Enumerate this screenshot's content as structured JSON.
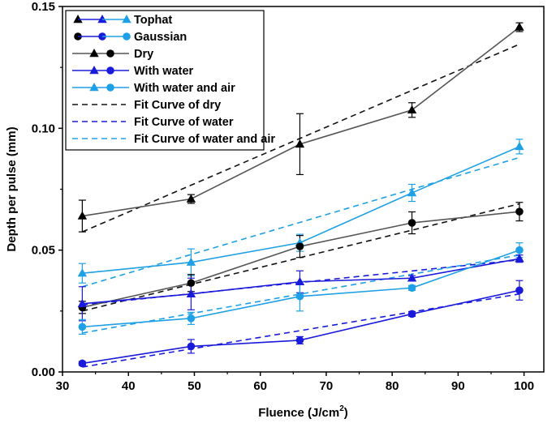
{
  "chart_data": {
    "type": "line",
    "title": "",
    "xlabel": "Fluence (J/cm",
    "xlabel_sup": "2",
    "xlabel_end": ")",
    "ylabel": "Depth per pulse (mm)",
    "xlim": [
      30,
      103
    ],
    "ylim": [
      0,
      0.15
    ],
    "xticks": [
      30,
      40,
      50,
      60,
      70,
      80,
      90,
      100
    ],
    "xtick_labels": [
      "30",
      "40",
      "50",
      "60",
      "70",
      "80",
      "90",
      "100"
    ],
    "yticks": [
      0,
      0.05,
      0.1,
      0.15
    ],
    "ytick_labels": [
      "0.00",
      "0.05",
      "0.10",
      "0.15"
    ],
    "grid": false,
    "legend_position": "top-left",
    "colors": {
      "dry": "#555555",
      "dry_marker": "#000000",
      "water": "#1a1adb",
      "water_and_air": "#1ea0e6",
      "fit_dry": "#111111",
      "fit_water": "#1a1adb",
      "fit_water_and_air": "#1ea0e6"
    },
    "x": [
      33,
      49.5,
      66,
      83,
      99.3
    ],
    "series": [
      {
        "key": "dry-tophat",
        "marker": "triangle",
        "color": "dry",
        "marker_color": "dry_marker",
        "values": [
          0.064,
          0.071,
          0.0935,
          0.1075,
          0.1415
        ],
        "errors": [
          0.0065,
          0.0018,
          0.0125,
          0.003,
          0.0018
        ]
      },
      {
        "key": "water-and-air-tophat",
        "marker": "triangle",
        "color": "water_and_air",
        "marker_color": "water_and_air",
        "values": [
          0.0405,
          0.045,
          0.053,
          0.0735,
          0.0925
        ],
        "errors": [
          0.004,
          0.0055,
          0.0035,
          0.0035,
          0.003
        ]
      },
      {
        "key": "dry-gaussian",
        "marker": "circle",
        "color": "dry",
        "marker_color": "dry_marker",
        "values": [
          0.0265,
          0.0365,
          0.0515,
          0.0612,
          0.0658
        ],
        "errors": [
          0.0025,
          0.0035,
          0.0045,
          0.0045,
          0.0038
        ]
      },
      {
        "key": "water-tophat",
        "marker": "triangle",
        "color": "water",
        "marker_color": "water",
        "values": [
          0.028,
          0.032,
          0.037,
          0.0385,
          0.0465
        ],
        "errors": [
          0.007,
          0.0065,
          0.0045,
          0.001,
          0.0015
        ]
      },
      {
        "key": "water-and-air-gaussian",
        "marker": "circle",
        "color": "water_and_air",
        "marker_color": "water_and_air",
        "values": [
          0.0185,
          0.022,
          0.031,
          0.0345,
          0.05
        ],
        "errors": [
          0.003,
          0.0025,
          0.006,
          0.001,
          0.003
        ]
      },
      {
        "key": "water-gaussian",
        "marker": "circle",
        "color": "water",
        "marker_color": "water",
        "values": [
          0.0035,
          0.0105,
          0.013,
          0.0238,
          0.0335
        ],
        "errors": [
          0.0008,
          0.0028,
          0.0015,
          0.001,
          0.004
        ]
      }
    ],
    "fits": [
      {
        "key": "fit-dry-tophat",
        "color": "fit_dry",
        "x": [
          33,
          99.3
        ],
        "values": [
          0.0575,
          0.1345
        ]
      },
      {
        "key": "fit-water-and-air-tophat",
        "color": "fit_water_and_air",
        "x": [
          33,
          99.3
        ],
        "values": [
          0.035,
          0.088
        ]
      },
      {
        "key": "fit-dry-gaussian",
        "color": "fit_dry",
        "x": [
          33,
          99.3
        ],
        "values": [
          0.025,
          0.069
        ]
      },
      {
        "key": "fit-water-tophat",
        "color": "fit_water",
        "x": [
          33,
          99.3
        ],
        "values": [
          0.0275,
          0.046
        ]
      },
      {
        "key": "fit-water-and-air-gaussian",
        "color": "fit_water_and_air",
        "x": [
          33,
          99.3
        ],
        "values": [
          0.016,
          0.048
        ]
      },
      {
        "key": "fit-water-gaussian",
        "color": "fit_water",
        "x": [
          33,
          99.3
        ],
        "values": [
          0.002,
          0.032
        ]
      }
    ],
    "legend": [
      {
        "label": "Tophat",
        "kind": "shape-pair",
        "marker": "triangle"
      },
      {
        "label": "Gaussian",
        "kind": "shape-pair",
        "marker": "circle"
      },
      {
        "label": "Dry",
        "kind": "pair",
        "color": "dry",
        "marker_color": "dry_marker"
      },
      {
        "label": "With water",
        "kind": "pair",
        "color": "water",
        "marker_color": "water"
      },
      {
        "label": "With water and air",
        "kind": "pair",
        "color": "water_and_air",
        "marker_color": "water_and_air"
      },
      {
        "label": "Fit Curve of dry",
        "kind": "dash",
        "color": "fit_dry"
      },
      {
        "label": "Fit Curve of water",
        "kind": "dash",
        "color": "fit_water"
      },
      {
        "label": "Fit Curve of water and air",
        "kind": "dash",
        "color": "fit_water_and_air"
      }
    ]
  }
}
